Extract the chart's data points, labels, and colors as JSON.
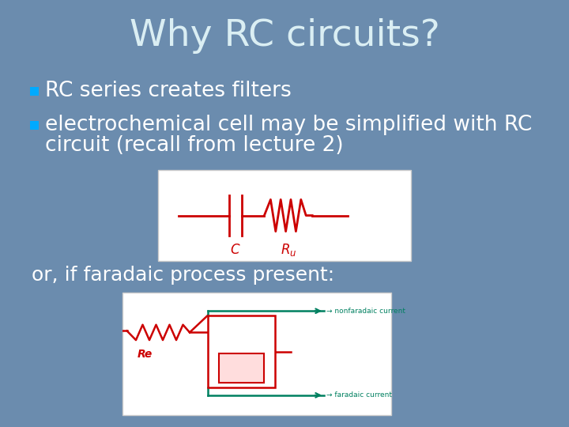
{
  "title": "Why RC circuits?",
  "title_color": "#daeef3",
  "title_fontsize": 34,
  "background_color": "#6b8cae",
  "bullet_color": "#00aaff",
  "text_color": "#ffffff",
  "bullet1": "RC series creates filters",
  "bullet2_line1": "electrochemical cell may be simplified with RC",
  "bullet2_line2": "circuit (recall from lecture 2)",
  "or_text": "or, if faradaic process present:",
  "text_fontsize": 19,
  "or_fontsize": 18,
  "red_color": "#cc0000",
  "green_color": "#008060"
}
